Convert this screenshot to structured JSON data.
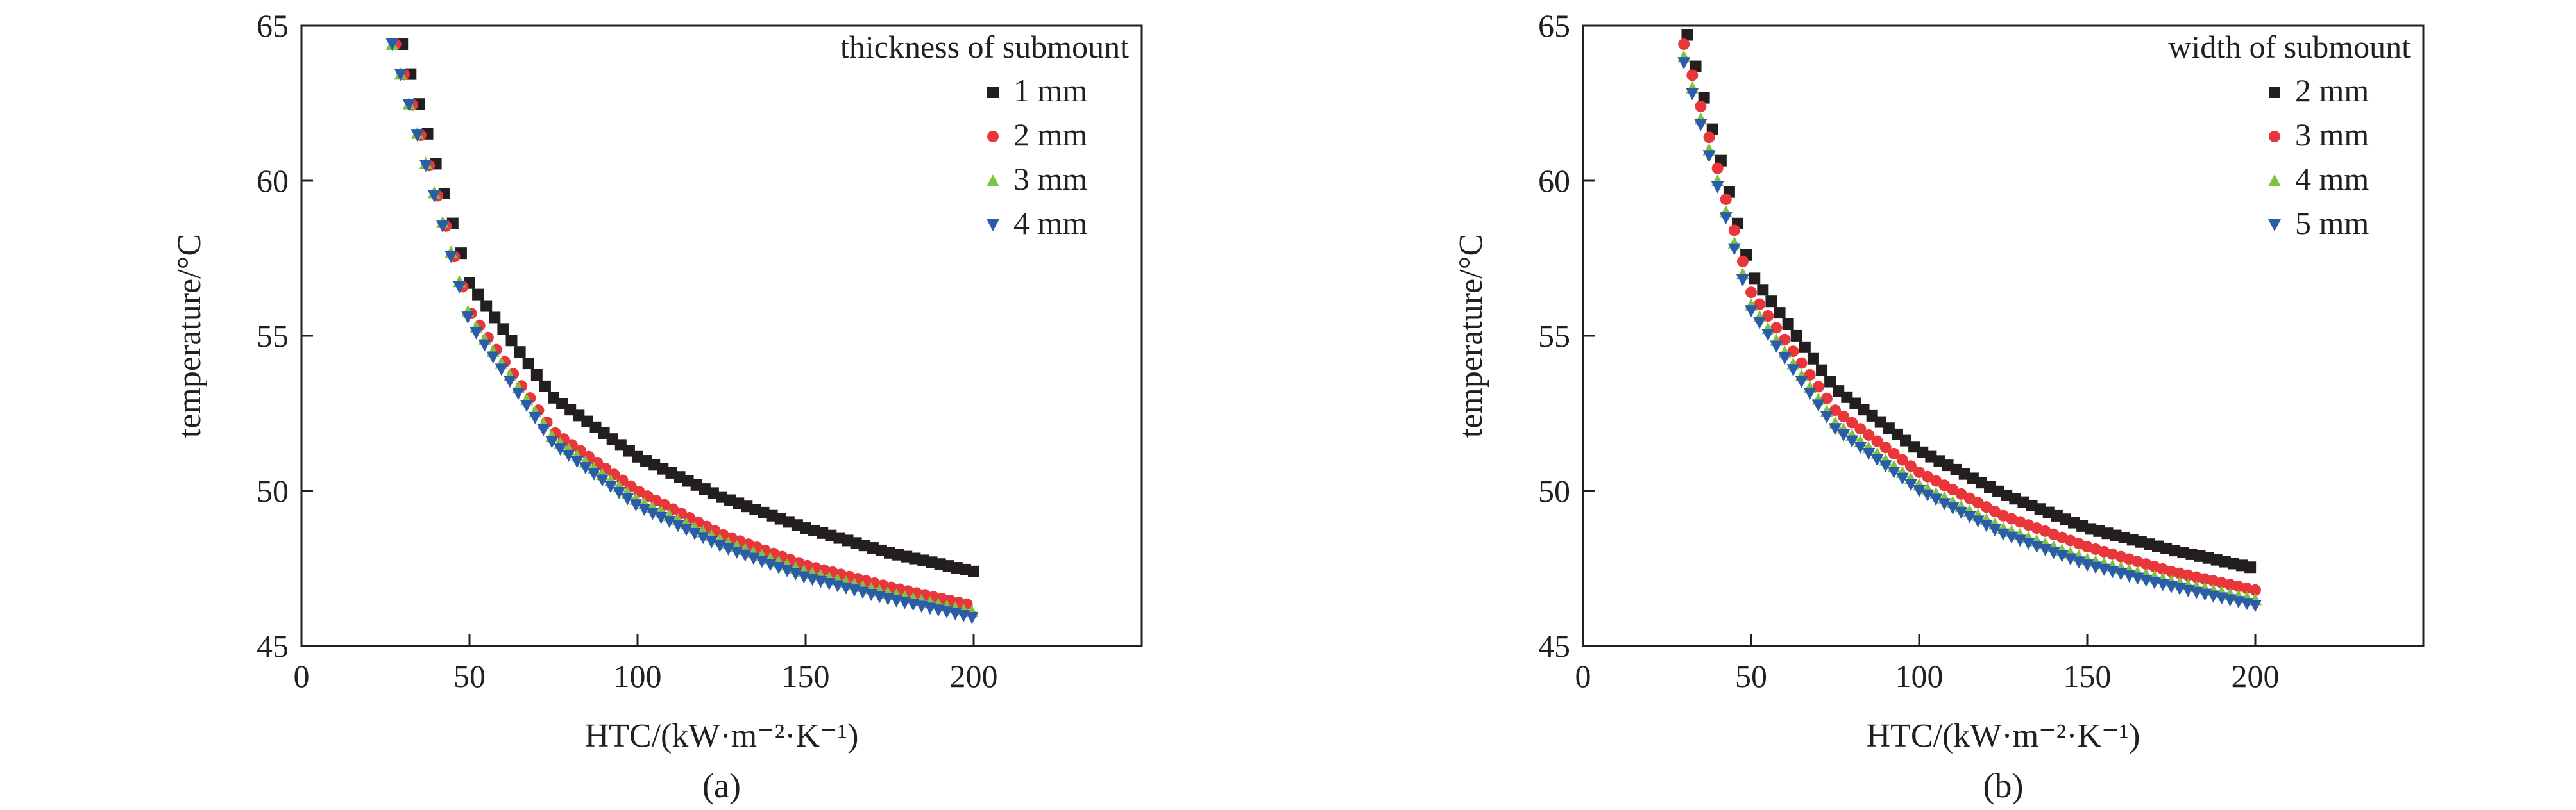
{
  "colors": {
    "black": "#231f20",
    "red": "#e8363a",
    "green": "#7dc242",
    "blue": "#2a5caa"
  },
  "chart_data": [
    {
      "type": "scatter",
      "caption": "(a)",
      "xlabel": "HTC/(kW·m⁻²·K⁻¹)",
      "ylabel": "temperature/°C",
      "xlim": [
        0,
        250
      ],
      "ylim": [
        45,
        65
      ],
      "xticks": [
        0,
        50,
        100,
        150,
        200
      ],
      "yticks": [
        45,
        50,
        55,
        60,
        65
      ],
      "legend_title": "thickness of submount",
      "legend_position": "top-right",
      "grid": false,
      "x_range": [
        27,
        200
      ],
      "series": [
        {
          "name": "1 mm",
          "marker": "square",
          "color": "#231f20",
          "points": [
            [
              30,
              64.4
            ],
            [
              50,
              56.7
            ],
            [
              75,
              53.0
            ],
            [
              100,
              51.1
            ],
            [
              125,
              49.8
            ],
            [
              150,
              48.8
            ],
            [
              175,
              48.0
            ],
            [
              200,
              47.4
            ]
          ]
        },
        {
          "name": "2 mm",
          "marker": "circle",
          "color": "#e8363a",
          "points": [
            [
              28,
              64.4
            ],
            [
              50,
              55.8
            ],
            [
              75,
              51.9
            ],
            [
              100,
              50.0
            ],
            [
              125,
              48.6
            ],
            [
              150,
              47.6
            ],
            [
              175,
              46.9
            ],
            [
              200,
              46.3
            ]
          ]
        },
        {
          "name": "3 mm",
          "marker": "triangle-up",
          "color": "#7dc242",
          "points": [
            [
              27,
              64.4
            ],
            [
              50,
              55.6
            ],
            [
              75,
              51.7
            ],
            [
              100,
              49.7
            ],
            [
              125,
              48.4
            ],
            [
              150,
              47.4
            ],
            [
              175,
              46.7
            ],
            [
              200,
              46.1
            ]
          ]
        },
        {
          "name": "4 mm",
          "marker": "triangle-down",
          "color": "#2a5caa",
          "points": [
            [
              27,
              64.4
            ],
            [
              50,
              55.4
            ],
            [
              75,
              51.5
            ],
            [
              100,
              49.5
            ],
            [
              125,
              48.2
            ],
            [
              150,
              47.2
            ],
            [
              175,
              46.5
            ],
            [
              200,
              45.9
            ]
          ]
        }
      ]
    },
    {
      "type": "scatter",
      "caption": "(b)",
      "xlabel": "HTC/(kW·m⁻²·K⁻¹)",
      "ylabel": "temperature/°C",
      "xlim": [
        0,
        250
      ],
      "ylim": [
        45,
        65
      ],
      "xticks": [
        0,
        50,
        100,
        150,
        200
      ],
      "yticks": [
        45,
        50,
        55,
        60,
        65
      ],
      "legend_title": "width of submount",
      "legend_position": "top-right",
      "grid": false,
      "x_range": [
        29,
        200
      ],
      "series": [
        {
          "name": "2 mm",
          "marker": "square",
          "color": "#231f20",
          "points": [
            [
              31,
              64.7
            ],
            [
              50,
              57.0
            ],
            [
              75,
              53.3
            ],
            [
              100,
              51.3
            ],
            [
              125,
              49.9
            ],
            [
              150,
              48.8
            ],
            [
              175,
              48.1
            ],
            [
              200,
              47.5
            ]
          ]
        },
        {
          "name": "3 mm",
          "marker": "circle",
          "color": "#e8363a",
          "points": [
            [
              30,
              64.4
            ],
            [
              50,
              56.4
            ],
            [
              75,
              52.6
            ],
            [
              100,
              50.6
            ],
            [
              125,
              49.2
            ],
            [
              150,
              48.2
            ],
            [
              175,
              47.4
            ],
            [
              200,
              46.8
            ]
          ]
        },
        {
          "name": "4 mm",
          "marker": "triangle-up",
          "color": "#7dc242",
          "points": [
            [
              30,
              64.0
            ],
            [
              50,
              56.0
            ],
            [
              75,
              52.2
            ],
            [
              100,
              50.2
            ],
            [
              125,
              48.8
            ],
            [
              150,
              47.8
            ],
            [
              175,
              47.1
            ],
            [
              200,
              46.5
            ]
          ]
        },
        {
          "name": "5 mm",
          "marker": "triangle-down",
          "color": "#2a5caa",
          "points": [
            [
              30,
              63.8
            ],
            [
              50,
              55.8
            ],
            [
              75,
              52.0
            ],
            [
              100,
              50.0
            ],
            [
              125,
              48.6
            ],
            [
              150,
              47.6
            ],
            [
              175,
              46.9
            ],
            [
              200,
              46.3
            ]
          ]
        }
      ]
    }
  ]
}
